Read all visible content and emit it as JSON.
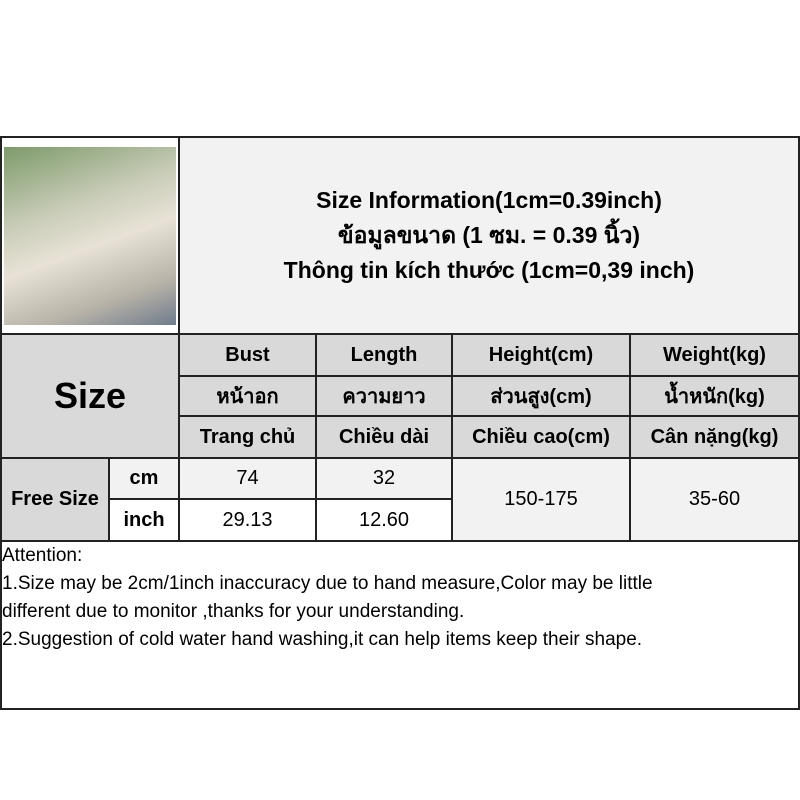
{
  "title": {
    "en": "Size Information(1cm=0.39inch)",
    "th": "ข้อมูลขนาด (1 ซม. = 0.39 นิ้ว)",
    "vi": "Thông tin kích thước (1cm=0,39 inch)"
  },
  "size_label": "Size",
  "columns": [
    {
      "en": "Bust",
      "th": "หน้าอก",
      "vi": "Trang chủ"
    },
    {
      "en": "Length",
      "th": "ความยาว",
      "vi": "Chiều dài"
    },
    {
      "en": "Height(cm)",
      "th": "ส่วนสูง(cm)",
      "vi": "Chiều cao(cm)"
    },
    {
      "en": "Weight(kg)",
      "th": "น้ำหนัก(kg)",
      "vi": "Cân nặng(kg)"
    }
  ],
  "row": {
    "name": "Free Size",
    "cm_label": "cm",
    "inch_label": "inch",
    "bust_cm": "74",
    "length_cm": "32",
    "bust_inch": "29.13",
    "length_inch": "12.60",
    "height": "150-175",
    "weight": "35-60"
  },
  "attention": [
    "Attention:",
    "1.Size may be 2cm/1inch inaccuracy due to hand measure,Color may be little",
    "different due to monitor ,thanks for your understanding.",
    "2.Suggestion of cold water hand washing,it can help items keep their shape."
  ]
}
